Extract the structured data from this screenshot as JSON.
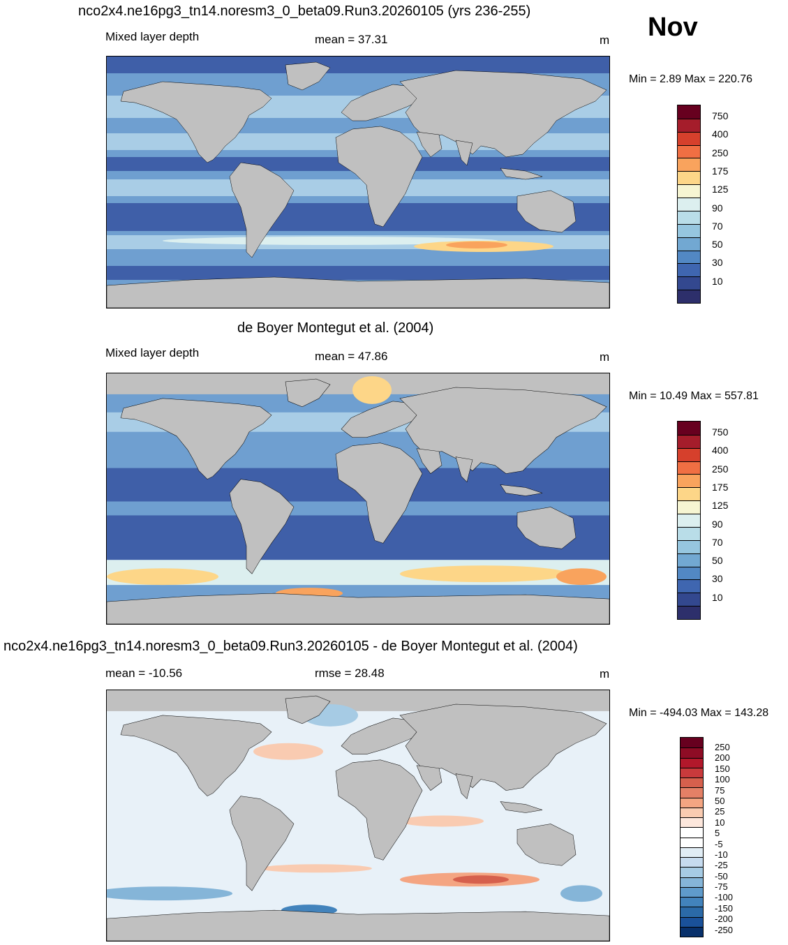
{
  "header": {
    "title": "nco2x4.ne16pg3_tn14.noresm3_0_beta09.Run3.20260105 (yrs 236-255)",
    "month": "Nov"
  },
  "panels": [
    {
      "id": "model",
      "title": "",
      "variable": "Mixed layer depth",
      "stat": "mean =  37.31",
      "unit": "m",
      "minmax": "Min =   2.89 Max = 220.76",
      "colorbar": {
        "labels": [
          "750",
          "400",
          "250",
          "175",
          "125",
          "90",
          "70",
          "50",
          "30",
          "10"
        ],
        "colors": [
          "#67001f",
          "#a51d2b",
          "#d6402c",
          "#f06f43",
          "#f9a35d",
          "#fdd688",
          "#f6f5d2",
          "#dcefef",
          "#b9dde8",
          "#96c6df",
          "#72a8d2",
          "#5288c4",
          "#3f66b0",
          "#33488f",
          "#2d2f6b"
        ]
      }
    },
    {
      "id": "obs",
      "title": "de Boyer Montegut et al. (2004)",
      "variable": "Mixed layer depth",
      "stat": "mean =  47.86",
      "unit": "m",
      "minmax": "Min =  10.49 Max = 557.81",
      "colorbar": {
        "labels": [
          "750",
          "400",
          "250",
          "175",
          "125",
          "90",
          "70",
          "50",
          "30",
          "10"
        ],
        "colors": [
          "#67001f",
          "#a51d2b",
          "#d6402c",
          "#f06f43",
          "#f9a35d",
          "#fdd688",
          "#f6f5d2",
          "#dcefef",
          "#b9dde8",
          "#96c6df",
          "#72a8d2",
          "#5288c4",
          "#3f66b0",
          "#33488f",
          "#2d2f6b"
        ]
      }
    },
    {
      "id": "diff",
      "title": "nco2x4.ne16pg3_tn14.noresm3_0_beta09.Run3.20260105 - de Boyer Montegut et al. (2004)",
      "variable": "mean = -10.56",
      "stat": "rmse =  28.48",
      "unit": "m",
      "minmax": "Min = -494.03 Max = 143.28",
      "colorbar": {
        "labels": [
          "250",
          "200",
          "150",
          "100",
          "75",
          "50",
          "25",
          "10",
          "5",
          "-5",
          "-10",
          "-25",
          "-50",
          "-75",
          "-100",
          "-150",
          "-200",
          "-250"
        ],
        "colors": [
          "#67001f",
          "#8e0c25",
          "#b2182b",
          "#c93a3c",
          "#d6604d",
          "#e48066",
          "#f4a582",
          "#f9cbb1",
          "#fde7dc",
          "#ffffff",
          "#ffffff",
          "#e1edf5",
          "#c6dbef",
          "#a6cbe4",
          "#85b5d8",
          "#5f9bcb",
          "#4283bc",
          "#2b6aa8",
          "#1a519a",
          "#08306b"
        ]
      }
    }
  ],
  "map_colors": {
    "land": "#c0c0c0",
    "ocean_deep": "#3f5fa8",
    "ocean_mid": "#6f9fd0",
    "ocean_light": "#a9cde6",
    "warm": "#fdd688",
    "hot": "#f06f43",
    "diff_pos": "#f4a582",
    "diff_neg": "#85b5d8",
    "diff_zero": "#ffffff"
  }
}
